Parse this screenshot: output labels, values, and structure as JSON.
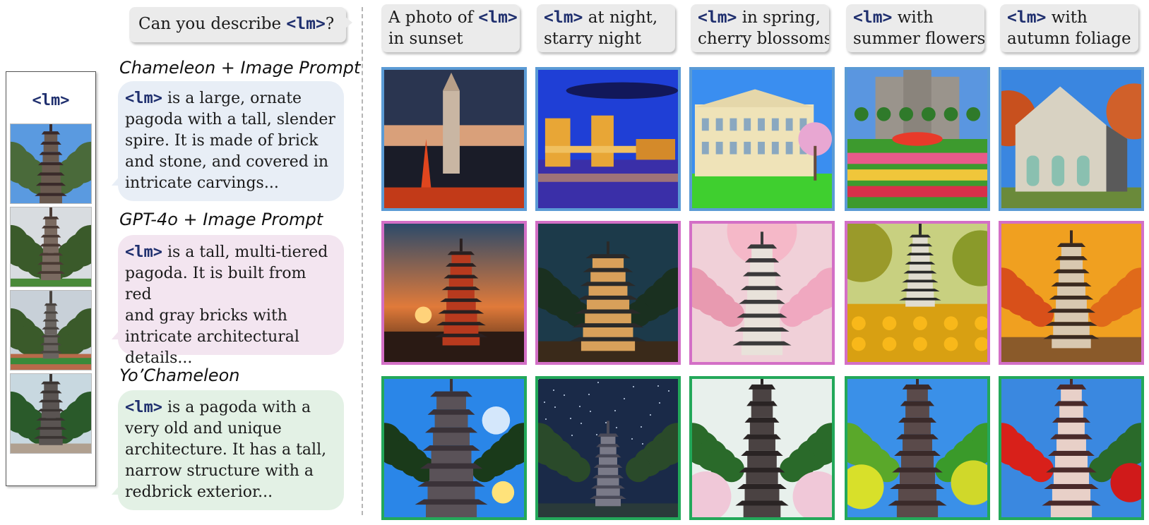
{
  "token": "<lm>",
  "question": {
    "token": "<lm>",
    "text": "Can you describe ",
    "suffix": "?"
  },
  "methods": [
    {
      "title": "Chameleon + Image Prompt",
      "lines": [
        "is a large, ornate",
        "pagoda with a tall, slender",
        "spire. It is made of brick",
        "and stone, and covered in",
        "intricate carvings..."
      ]
    },
    {
      "title": "GPT-4o + Image Prompt",
      "lines": [
        "is a tall, multi-tiered",
        "pagoda. It is built from red",
        "and gray bricks with",
        "intricate architectural",
        "details..."
      ]
    },
    {
      "title": "Yo’Chameleon",
      "lines": [
        "is a pagoda with a",
        "very old and unique",
        "architecture. It has a tall,",
        "narrow structure with a",
        "redbrick exterior..."
      ]
    }
  ],
  "prompts": [
    {
      "line1_pre": "A photo of ",
      "line1_token": true,
      "line1_post": "",
      "line2": "in sunset"
    },
    {
      "line1_pre": "",
      "line1_token": true,
      "line1_post": " at night,",
      "line2": "starry night"
    },
    {
      "line1_pre": "",
      "line1_token": true,
      "line1_post": " in spring,",
      "line2": "cherry blossoms"
    },
    {
      "line1_pre": "",
      "line1_token": true,
      "line1_post": " with",
      "line2": "summer flowers"
    },
    {
      "line1_pre": "",
      "line1_token": true,
      "line1_post": " with",
      "line2": "autumn foliage"
    }
  ],
  "images": [
    [
      {
        "scene": "dusk-towers"
      },
      {
        "scene": "night-bridge"
      },
      {
        "scene": "spring-building"
      },
      {
        "scene": "summer-castle"
      },
      {
        "scene": "autumn-church"
      }
    ],
    [
      {
        "scene": "sunset-pagoda"
      },
      {
        "scene": "night-pagoda"
      },
      {
        "scene": "cherry-pagoda"
      },
      {
        "scene": "flower-pagoda"
      },
      {
        "scene": "autumn-pagoda"
      }
    ],
    [
      {
        "scene": "sunset-tower"
      },
      {
        "scene": "starry-tower"
      },
      {
        "scene": "blossom-tower"
      },
      {
        "scene": "summer-tower"
      },
      {
        "scene": "red-tree-tower"
      }
    ]
  ],
  "colors": {
    "row0": "#5b9bd5",
    "row1": "#d36fc6",
    "row2": "#23a85a"
  }
}
